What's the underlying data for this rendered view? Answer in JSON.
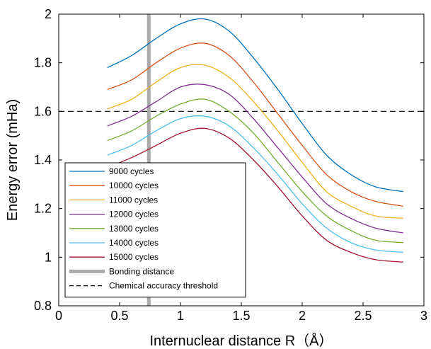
{
  "chart_data": {
    "type": "line",
    "xlabel": "Internuclear distance R（Å）",
    "ylabel": "Energy error (mHa)",
    "xlim": [
      0,
      3
    ],
    "ylim": [
      0.8,
      2
    ],
    "xticks": [
      "0",
      "0.5",
      "1",
      "1.5",
      "2",
      "2.5",
      "3"
    ],
    "yticks": [
      "0.8",
      "1",
      "1.2",
      "1.4",
      "1.6",
      "1.8",
      "2"
    ],
    "grid": false,
    "legend_position": "bottom-left",
    "x": [
      0.4,
      0.6,
      0.8,
      1.0,
      1.2,
      1.4,
      1.6,
      1.8,
      2.0,
      2.2,
      2.4,
      2.6,
      2.83
    ],
    "series": [
      {
        "name": "9000 cycles",
        "color": "#0072BD",
        "values": [
          1.78,
          1.83,
          1.9,
          1.96,
          1.98,
          1.93,
          1.82,
          1.69,
          1.55,
          1.42,
          1.34,
          1.29,
          1.27
        ]
      },
      {
        "name": "10000 cycles",
        "color": "#D95319",
        "values": [
          1.69,
          1.73,
          1.8,
          1.86,
          1.88,
          1.83,
          1.72,
          1.59,
          1.46,
          1.34,
          1.27,
          1.23,
          1.21
        ]
      },
      {
        "name": "11000 cycles",
        "color": "#EDB120",
        "values": [
          1.61,
          1.65,
          1.72,
          1.78,
          1.79,
          1.74,
          1.64,
          1.52,
          1.39,
          1.27,
          1.21,
          1.17,
          1.16
        ]
      },
      {
        "name": "12000 cycles",
        "color": "#7E2F8E",
        "values": [
          1.54,
          1.58,
          1.64,
          1.7,
          1.71,
          1.67,
          1.57,
          1.45,
          1.33,
          1.22,
          1.16,
          1.12,
          1.1
        ]
      },
      {
        "name": "13000 cycles",
        "color": "#77AC30",
        "values": [
          1.48,
          1.52,
          1.58,
          1.63,
          1.65,
          1.6,
          1.51,
          1.39,
          1.27,
          1.17,
          1.11,
          1.07,
          1.06
        ]
      },
      {
        "name": "14000 cycles",
        "color": "#4DBEEE",
        "values": [
          1.42,
          1.46,
          1.52,
          1.57,
          1.58,
          1.54,
          1.45,
          1.34,
          1.22,
          1.12,
          1.06,
          1.03,
          1.02
        ]
      },
      {
        "name": "15000 cycles",
        "color": "#A2142F",
        "values": [
          1.37,
          1.41,
          1.46,
          1.51,
          1.53,
          1.49,
          1.4,
          1.29,
          1.17,
          1.07,
          1.02,
          0.99,
          0.98
        ]
      }
    ],
    "reference_lines": [
      {
        "name": "Bonding distance",
        "orientation": "vertical",
        "value": 0.74,
        "color": "#aaaaaa",
        "style": "solid-thick"
      },
      {
        "name": "Chemical accuracy threshold",
        "orientation": "horizontal",
        "value": 1.6,
        "color": "#000000",
        "style": "dashed"
      }
    ]
  }
}
